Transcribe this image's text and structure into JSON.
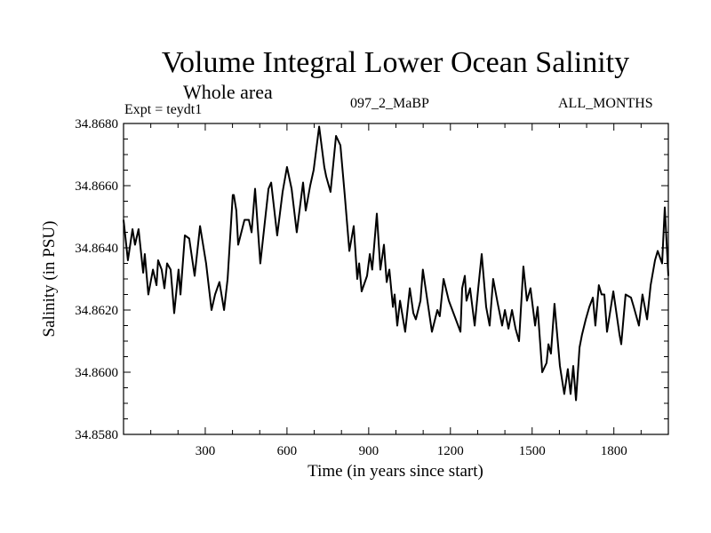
{
  "chart_data": {
    "type": "line",
    "title": "Volume Integral Lower Ocean Salinity",
    "subtitle": "Whole area",
    "annotations": {
      "left": "Expt = teydt1",
      "center": "097_2_MaBP",
      "right": "ALL_MONTHS"
    },
    "xlabel": "Time (in years since start)",
    "ylabel": "Salinity (in PSU)",
    "xlim": [
      0,
      2000
    ],
    "ylim": [
      34.858,
      34.868
    ],
    "x_major_ticks": [
      300,
      600,
      900,
      1200,
      1500,
      1800
    ],
    "x_tick_labels": [
      "300",
      "600",
      "900",
      "1200",
      "1500",
      "1800"
    ],
    "x_minor_step": 100,
    "y_major_ticks": [
      34.858,
      34.86,
      34.862,
      34.864,
      34.866,
      34.868
    ],
    "y_tick_labels": [
      "34.8580",
      "34.8600",
      "34.8620",
      "34.8640",
      "34.8660",
      "34.8680"
    ],
    "y_minor_step": 0.0005,
    "grid": false,
    "line_color": "#000000",
    "series": [
      {
        "name": "Salinity",
        "x": [
          0,
          16,
          33,
          42,
          55,
          72,
          78,
          91,
          108,
          121,
          127,
          140,
          150,
          160,
          173,
          186,
          202,
          209,
          225,
          241,
          261,
          281,
          303,
          323,
          336,
          352,
          369,
          382,
          401,
          405,
          414,
          421,
          444,
          460,
          470,
          483,
          502,
          532,
          542,
          564,
          584,
          600,
          617,
          636,
          659,
          669,
          685,
          698,
          718,
          737,
          744,
          760,
          780,
          796,
          812,
          829,
          845,
          858,
          865,
          874,
          894,
          904,
          913,
          930,
          943,
          956,
          966,
          976,
          989,
          995,
          1005,
          1015,
          1034,
          1051,
          1064,
          1073,
          1090,
          1099,
          1132,
          1152,
          1161,
          1175,
          1194,
          1237,
          1243,
          1253,
          1259,
          1272,
          1289,
          1302,
          1315,
          1331,
          1344,
          1357,
          1374,
          1390,
          1400,
          1413,
          1426,
          1439,
          1452,
          1468,
          1481,
          1494,
          1511,
          1520,
          1537,
          1553,
          1560,
          1569,
          1582,
          1602,
          1618,
          1631,
          1641,
          1651,
          1661,
          1674,
          1683,
          1697,
          1710,
          1723,
          1732,
          1745,
          1755,
          1765,
          1775,
          1798,
          1821,
          1827,
          1843,
          1863,
          1873,
          1892,
          1905,
          1922,
          1935,
          1951,
          1961,
          1977,
          1987,
          2000
        ],
        "y": [
          34.8649,
          34.8636,
          34.8646,
          34.8641,
          34.8646,
          34.8632,
          34.8638,
          34.8625,
          34.8633,
          34.8628,
          34.8636,
          34.8633,
          34.8627,
          34.8635,
          34.8633,
          34.8619,
          34.8633,
          34.8625,
          34.8644,
          34.8643,
          34.8631,
          34.8647,
          34.8635,
          34.862,
          34.8625,
          34.8629,
          34.862,
          34.863,
          34.8657,
          34.8657,
          34.8652,
          34.8641,
          34.8649,
          34.8649,
          34.8645,
          34.8659,
          34.8635,
          34.8659,
          34.8661,
          34.8644,
          34.8658,
          34.8666,
          34.8659,
          34.8645,
          34.8661,
          34.8652,
          34.866,
          34.8665,
          34.8679,
          34.8666,
          34.8663,
          34.8658,
          34.8676,
          34.8673,
          34.8657,
          34.8639,
          34.8647,
          34.863,
          34.8635,
          34.8626,
          34.8631,
          34.8638,
          34.8633,
          34.8651,
          34.8633,
          34.8641,
          34.8629,
          34.8633,
          34.8621,
          34.8625,
          34.8615,
          34.8623,
          34.8613,
          34.8627,
          34.8619,
          34.8617,
          34.8623,
          34.8633,
          34.8613,
          34.862,
          34.8618,
          34.863,
          34.8623,
          34.8613,
          34.8627,
          34.8631,
          34.8623,
          34.8627,
          34.8615,
          34.8627,
          34.8638,
          34.8621,
          34.8615,
          34.863,
          34.8622,
          34.8615,
          34.862,
          34.8614,
          34.862,
          34.8614,
          34.861,
          34.8634,
          34.8623,
          34.8627,
          34.8615,
          34.8621,
          34.86,
          34.8603,
          34.8609,
          34.8606,
          34.8622,
          34.8602,
          34.8593,
          34.8601,
          34.8593,
          34.8602,
          34.8591,
          34.8608,
          34.8612,
          34.8617,
          34.8621,
          34.8624,
          34.8615,
          34.8628,
          34.8625,
          34.8625,
          34.8613,
          34.8626,
          34.8612,
          34.8609,
          34.8625,
          34.8624,
          34.8621,
          34.8615,
          34.8625,
          34.8617,
          34.8628,
          34.8636,
          34.8639,
          34.8635,
          34.8653,
          34.8631
        ]
      }
    ]
  }
}
